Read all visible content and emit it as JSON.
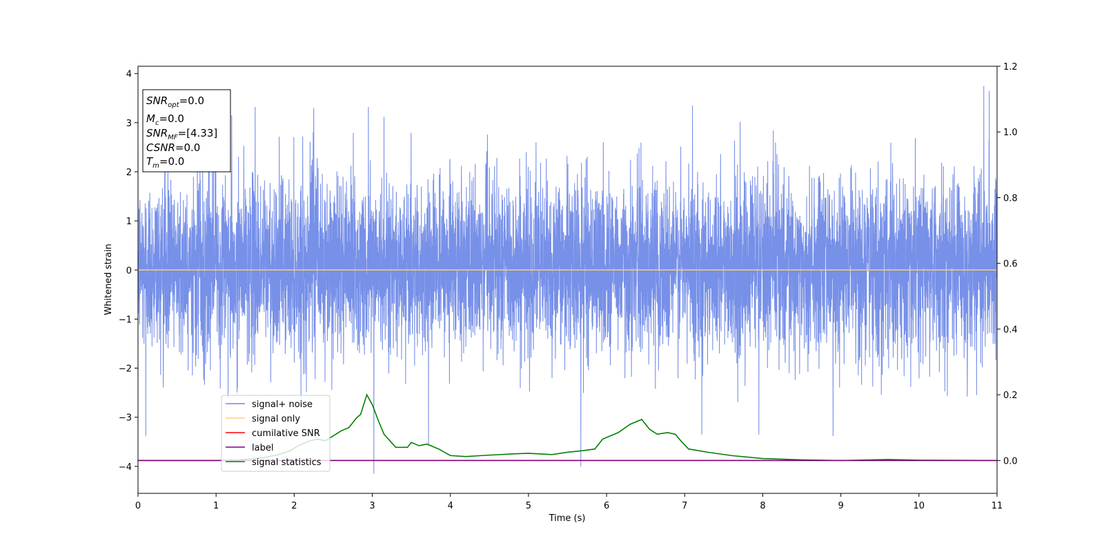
{
  "chart_data": {
    "type": "line",
    "xlabel": "Time (s)",
    "ylabel": "Whitened strain",
    "xlim": [
      0,
      11
    ],
    "ylim": [
      -4.55,
      4.15
    ],
    "y2lim": [
      -0.1,
      1.2
    ],
    "x_ticks": [
      "0",
      "1",
      "2",
      "3",
      "4",
      "5",
      "6",
      "7",
      "8",
      "9",
      "10",
      "11"
    ],
    "y_ticks": [
      "−4",
      "−3",
      "−2",
      "−1",
      "0",
      "1",
      "2",
      "3",
      "4"
    ],
    "y2_ticks": [
      "0.0",
      "0.2",
      "0.4",
      "0.6",
      "0.8",
      "1.0",
      "1.2"
    ],
    "grid": false,
    "legend_position": "lower-left",
    "series": [
      {
        "name": "signal+ noise",
        "axis": "left",
        "color": "#6b87e6",
        "noise": true,
        "typical_envelope": [
          -1.9,
          2.1
        ],
        "peaks": [
          {
            "x": 0.1,
            "y": -3.38
          },
          {
            "x": 1.2,
            "y": 3.15
          },
          {
            "x": 1.5,
            "y": 3.32
          },
          {
            "x": 2.25,
            "y": 3.3
          },
          {
            "x": 2.95,
            "y": 3.32
          },
          {
            "x": 3.02,
            "y": -4.15
          },
          {
            "x": 3.15,
            "y": 3.12
          },
          {
            "x": 3.72,
            "y": -3.55
          },
          {
            "x": 5.67,
            "y": -4.0
          },
          {
            "x": 7.1,
            "y": 3.35
          },
          {
            "x": 7.22,
            "y": -3.35
          },
          {
            "x": 7.95,
            "y": -3.35
          },
          {
            "x": 8.9,
            "y": -3.38
          },
          {
            "x": 10.83,
            "y": 3.75
          },
          {
            "x": 10.9,
            "y": 3.65
          }
        ]
      },
      {
        "name": "signal only",
        "axis": "left",
        "color": "#ffcc80",
        "x": [
          0,
          11
        ],
        "y": [
          0,
          0
        ]
      },
      {
        "name": "cumilative SNR",
        "axis": "right",
        "color": "#ff0000",
        "x": [
          0,
          11
        ],
        "y": [
          0,
          0
        ]
      },
      {
        "name": "label",
        "axis": "right",
        "color": "#800080",
        "x": [
          0,
          11
        ],
        "y": [
          0,
          0
        ]
      },
      {
        "name": "signal statistics",
        "axis": "right",
        "color": "#008000",
        "x": [
          0,
          0.5,
          1.0,
          1.3,
          1.6,
          1.8,
          1.95,
          2.05,
          2.2,
          2.3,
          2.4,
          2.5,
          2.6,
          2.7,
          2.8,
          2.85,
          2.93,
          3.0,
          3.08,
          3.15,
          3.3,
          3.45,
          3.5,
          3.6,
          3.7,
          3.85,
          4.0,
          4.2,
          4.4,
          4.8,
          5.0,
          5.3,
          5.5,
          5.7,
          5.85,
          5.95,
          6.05,
          6.15,
          6.3,
          6.45,
          6.55,
          6.65,
          6.78,
          6.88,
          6.95,
          7.05,
          7.3,
          7.6,
          8.0,
          8.5,
          9.0,
          9.6,
          10.0,
          11.0
        ],
        "y": [
          0.0,
          0.0,
          0.0,
          0.002,
          0.008,
          0.018,
          0.03,
          0.045,
          0.06,
          0.065,
          0.06,
          0.075,
          0.09,
          0.1,
          0.13,
          0.14,
          0.2,
          0.17,
          0.12,
          0.08,
          0.04,
          0.04,
          0.055,
          0.045,
          0.05,
          0.035,
          0.015,
          0.012,
          0.015,
          0.02,
          0.022,
          0.018,
          0.025,
          0.03,
          0.035,
          0.065,
          0.075,
          0.085,
          0.11,
          0.125,
          0.095,
          0.08,
          0.085,
          0.08,
          0.06,
          0.035,
          0.025,
          0.015,
          0.006,
          0.002,
          0.0,
          0.003,
          0.001,
          0.0
        ]
      }
    ],
    "annotation_box": {
      "position": "upper-left",
      "lines": [
        {
          "base": "SNR",
          "sub": "opt",
          "value": "=0.0"
        },
        {
          "base": "M",
          "sub": "c",
          "value": "=0.0"
        },
        {
          "base": "SNR",
          "sub": "MF",
          "value": "=[4.33]"
        },
        {
          "base": "CSNR",
          "sub": "",
          "value": "=0.0"
        },
        {
          "base": "T",
          "sub": "m",
          "value": "=0.0"
        }
      ]
    }
  }
}
